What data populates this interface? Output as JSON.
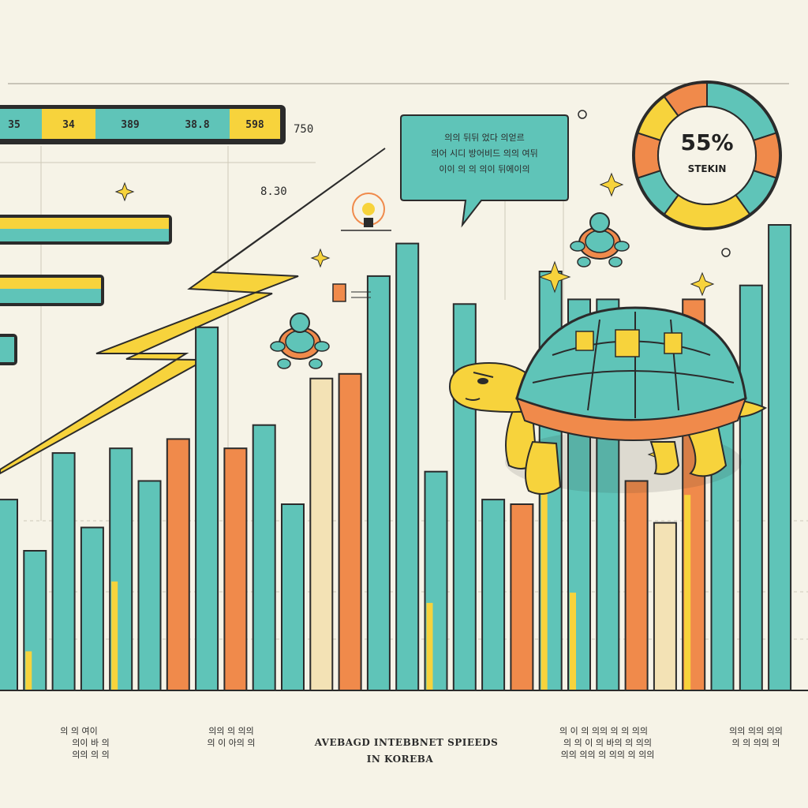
{
  "colors": {
    "teal": "#5fc4b8",
    "yellow": "#f7d33c",
    "orange": "#f08a4b",
    "cream": "#f6f3e7",
    "ink": "#2b2b2b",
    "cream_bar": "#f3e2b5"
  },
  "top_tabs": [
    "35",
    "34",
    "389",
    "38.8",
    "598"
  ],
  "float_labels": {
    "top_right": "750",
    "mid": "8.30"
  },
  "donut": {
    "value": "55%",
    "label": "STEKIN",
    "segments": [
      {
        "color": "#5fc4b8",
        "value": 2
      },
      {
        "color": "#f08a4b",
        "value": 1
      },
      {
        "color": "#5fc4b8",
        "value": 1
      },
      {
        "color": "#f7d33c",
        "value": 2
      },
      {
        "color": "#5fc4b8",
        "value": 1
      },
      {
        "color": "#f08a4b",
        "value": 1
      },
      {
        "color": "#f7d33c",
        "value": 1
      },
      {
        "color": "#f08a4b",
        "value": 1
      }
    ]
  },
  "speech_bubble": {
    "lines": [
      "의의 뒤뒤 었다 의얻르",
      "의어 시디 방어비드 의의 여뒤",
      "이이 의 의 의이 뒤에이의"
    ]
  },
  "chart_data": {
    "type": "bar",
    "title": "AVEBAGD INTEBBNET SPIEEDS IN KOREBA",
    "xlabel": "",
    "ylabel": "",
    "ylim": [
      0,
      100
    ],
    "bars": [
      {
        "value": 41,
        "color": "#5fc4b8",
        "split": 0
      },
      {
        "value": 30,
        "color": "#5fc4b8",
        "split": 0.28
      },
      {
        "value": 51,
        "color": "#5fc4b8",
        "split": 0
      },
      {
        "value": 35,
        "color": "#5fc4b8",
        "split": 0
      },
      {
        "value": 52,
        "color": "#5fc4b8",
        "split": 0.45
      },
      {
        "value": 45,
        "color": "#5fc4b8",
        "split": 0
      },
      {
        "value": 54,
        "color": "#f08a4b",
        "split": 0
      },
      {
        "value": 78,
        "color": "#5fc4b8",
        "split": 0
      },
      {
        "value": 52,
        "color": "#f08a4b",
        "split": 0
      },
      {
        "value": 57,
        "color": "#5fc4b8",
        "split": 0
      },
      {
        "value": 40,
        "color": "#5fc4b8",
        "split": 0
      },
      {
        "value": 67,
        "color": "#f3e2b5",
        "split": 0
      },
      {
        "value": 68,
        "color": "#f08a4b",
        "split": 0
      },
      {
        "value": 89,
        "color": "#5fc4b8",
        "split": 0
      },
      {
        "value": 96,
        "color": "#5fc4b8",
        "split": 0
      },
      {
        "value": 47,
        "color": "#5fc4b8",
        "split": 0.4
      },
      {
        "value": 83,
        "color": "#5fc4b8",
        "split": 0
      },
      {
        "value": 41,
        "color": "#5fc4b8",
        "split": 0
      },
      {
        "value": 40,
        "color": "#f08a4b",
        "split": 0
      },
      {
        "value": 90,
        "color": "#5fc4b8",
        "split": 0.55
      },
      {
        "value": 84,
        "color": "#5fc4b8",
        "split": 0.25
      },
      {
        "value": 84,
        "color": "#5fc4b8",
        "split": 0
      },
      {
        "value": 45,
        "color": "#f08a4b",
        "split": 0
      },
      {
        "value": 36,
        "color": "#f3e2b5",
        "split": 0
      },
      {
        "value": 84,
        "color": "#f08a4b",
        "split": 0.5
      },
      {
        "value": 65,
        "color": "#5fc4b8",
        "split": 0
      },
      {
        "value": 87,
        "color": "#5fc4b8",
        "split": 0
      },
      {
        "value": 100,
        "color": "#5fc4b8",
        "split": 0
      }
    ],
    "captions": [
      {
        "lines": [
          "의 의 여이",
          "의이 바 의",
          "의의 의 의"
        ]
      },
      {
        "lines": [
          "의의 의 의의",
          "의 이 아의 의"
        ]
      },
      {
        "lines": [
          "AVEBAGD INTEBBNET SPIEEDS",
          "IN KOREBA"
        ],
        "is_title": true
      },
      {
        "lines": [
          "의 이 의 의의 의 의 의의",
          "의 의 이 의 바의 의 의의",
          "의의 의의 의 의의 의 의의"
        ]
      },
      {
        "lines": [
          "의의 의의 의의",
          "의 의 의의 의"
        ]
      }
    ]
  }
}
